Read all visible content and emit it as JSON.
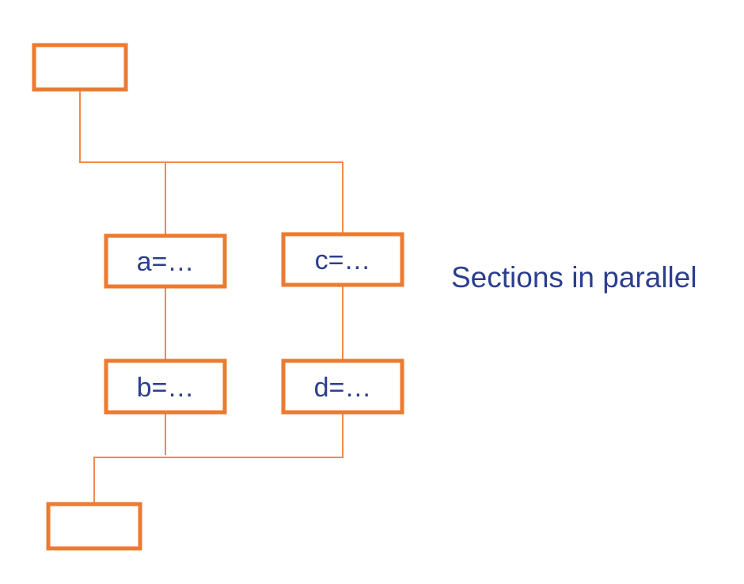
{
  "diagram": {
    "nodes": {
      "start": {
        "label": ""
      },
      "a": {
        "label": "a=…"
      },
      "c": {
        "label": "c=…"
      },
      "b": {
        "label": "b=…"
      },
      "d": {
        "label": "d=…"
      },
      "end": {
        "label": ""
      }
    },
    "side_note": "Sections in parallel"
  },
  "colors": {
    "box_stroke": "#ec7a30",
    "connector": "#f28a4a",
    "text": "#2b3f8f"
  }
}
